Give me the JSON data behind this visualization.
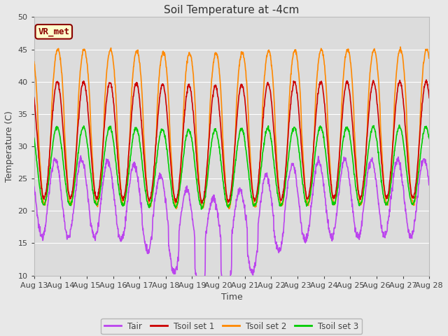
{
  "title": "Soil Temperature at -4cm",
  "xlabel": "Time",
  "ylabel": "Temperature (C)",
  "ylim": [
    10,
    50
  ],
  "background_color": "#e8e8e8",
  "plot_bg_color": "#dcdcdc",
  "annotation_text": "VR_met",
  "annotation_bg": "#ffffcc",
  "annotation_border": "#8B0000",
  "tick_labels": [
    "Aug 13",
    "Aug 14",
    "Aug 15",
    "Aug 16",
    "Aug 17",
    "Aug 18",
    "Aug 19",
    "Aug 20",
    "Aug 21",
    "Aug 22",
    "Aug 23",
    "Aug 24",
    "Aug 25",
    "Aug 26",
    "Aug 27",
    "Aug 28"
  ],
  "colors": {
    "Tair": "#bb44ee",
    "Tsoil1": "#cc0000",
    "Tsoil2": "#ff8800",
    "Tsoil3": "#00cc00"
  },
  "legend_labels": [
    "Tair",
    "Tsoil set 1",
    "Tsoil set 2",
    "Tsoil set 3"
  ],
  "yticks": [
    10,
    15,
    20,
    25,
    30,
    35,
    40,
    45,
    50
  ]
}
